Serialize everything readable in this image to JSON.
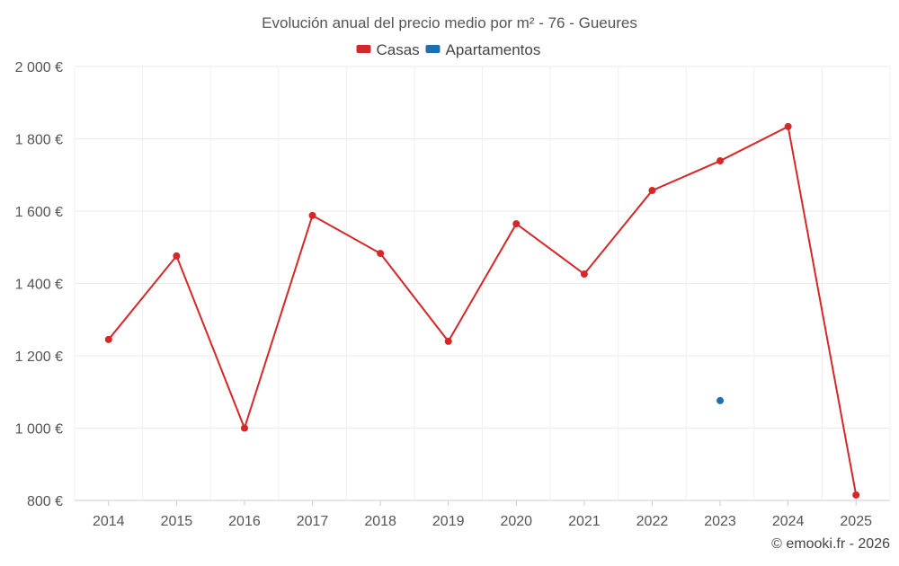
{
  "chart_data": {
    "type": "line",
    "title": "Evolución anual del precio medio por m² - 76 - Gueures",
    "categories": [
      "2014",
      "2015",
      "2016",
      "2017",
      "2018",
      "2019",
      "2020",
      "2021",
      "2022",
      "2023",
      "2024",
      "2025"
    ],
    "series": [
      {
        "name": "Casas",
        "color": "#d62728",
        "values": [
          1245,
          1476,
          1000,
          1588,
          1483,
          1240,
          1565,
          1426,
          1657,
          1739,
          1834,
          815
        ]
      },
      {
        "name": "Apartamentos",
        "color": "#1f6fb0",
        "values": [
          null,
          null,
          null,
          null,
          null,
          null,
          null,
          null,
          null,
          1076,
          null,
          null
        ]
      }
    ],
    "ylim": [
      800,
      2000
    ],
    "yticks": [
      800,
      1000,
      1200,
      1400,
      1600,
      1800,
      2000
    ],
    "ytick_labels": [
      "800 €",
      "1 000 €",
      "1 200 €",
      "1 400 €",
      "1 600 €",
      "1 800 €",
      "2 000 €"
    ],
    "legend": "top-center",
    "grid": true,
    "credit": "© emooki.fr - 2026"
  }
}
